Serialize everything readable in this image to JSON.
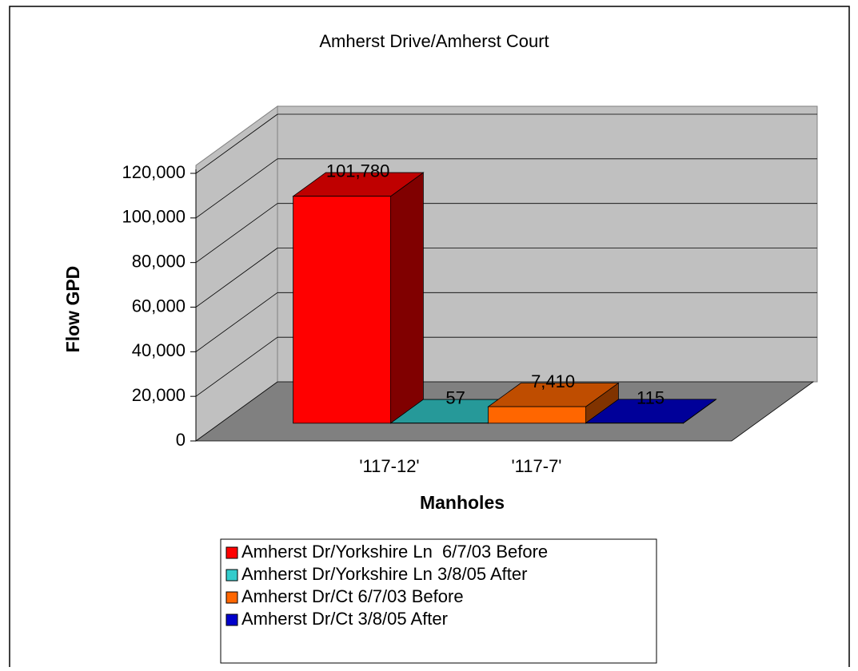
{
  "chart_data": {
    "type": "bar3d",
    "title": "Amherst Drive/Amherst Court",
    "x_label": "Manholes",
    "y_label": "Flow GPD",
    "categories": [
      "'117-12'",
      "'117-7'"
    ],
    "series": [
      {
        "name": "Amherst Dr/Yorkshire Ln  6/7/03 Before",
        "color": "#ff0000",
        "values": [
          101780,
          null
        ],
        "value_labels": [
          "101,780",
          null
        ]
      },
      {
        "name": "Amherst Dr/Yorkshire Ln 3/8/05 After",
        "color": "#33cccc",
        "values": [
          57,
          null
        ],
        "value_labels": [
          "57",
          null
        ]
      },
      {
        "name": "Amherst Dr/Ct 6/7/03 Before",
        "color": "#ff6600",
        "values": [
          null,
          7410
        ],
        "value_labels": [
          null,
          "7,410"
        ]
      },
      {
        "name": "Amherst Dr/Ct 3/8/05 After",
        "color": "#0000cc",
        "values": [
          null,
          115
        ],
        "value_labels": [
          null,
          "115"
        ]
      }
    ],
    "ylim": [
      0,
      120000
    ],
    "yticks": [
      0,
      {
        "value": 20000,
        "label": "20,000"
      },
      {
        "value": 40000,
        "label": "40,000"
      },
      {
        "value": 60000,
        "label": "60,000"
      },
      {
        "value": 80000,
        "label": "80,000"
      },
      {
        "value": 100000,
        "label": "100,000"
      },
      {
        "value": 120000,
        "label": "120,000"
      }
    ],
    "grid": true
  }
}
